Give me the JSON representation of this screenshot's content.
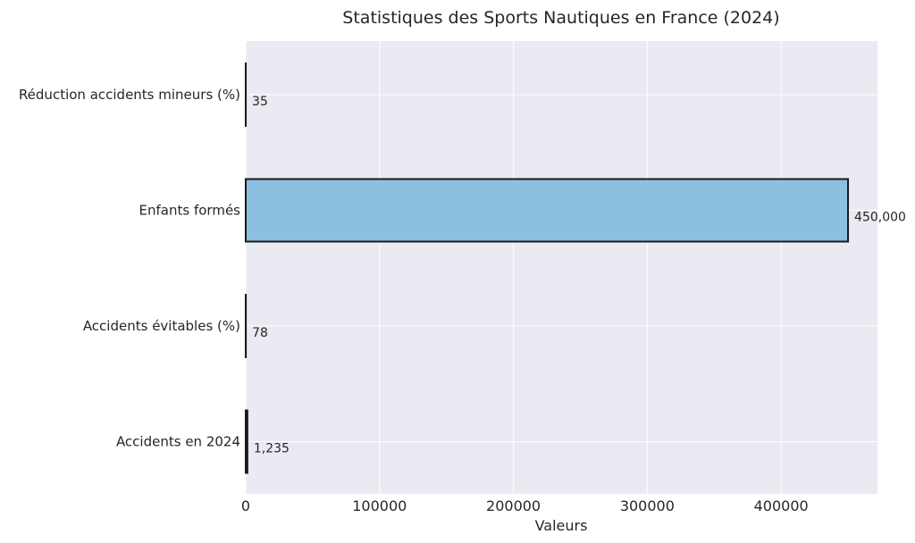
{
  "chart_data": {
    "type": "bar",
    "orientation": "horizontal",
    "title": "Statistiques des Sports Nautiques en France (2024)",
    "xlabel": "Valeurs",
    "ylabel": "",
    "categories": [
      "Réduction accidents mineurs (%)",
      "Enfants formés",
      "Accidents évitables (%)",
      "Accidents en 2024"
    ],
    "values": [
      35,
      450000,
      78,
      1235
    ],
    "value_labels": [
      "35",
      "450,000",
      "78",
      "1,235"
    ],
    "xlim": [
      0,
      472000
    ],
    "xticks": [
      0,
      100000,
      200000,
      300000,
      400000
    ],
    "xtick_labels": [
      "0",
      "100000",
      "200000",
      "300000",
      "400000"
    ],
    "grid": true,
    "legend": "none",
    "colors": {
      "plot_background": "#eaeaf2",
      "grid": "#ffffff",
      "bar_fill": "#8bc0e0",
      "bar_edge": "#1a1a1a",
      "text": "#262626"
    }
  }
}
